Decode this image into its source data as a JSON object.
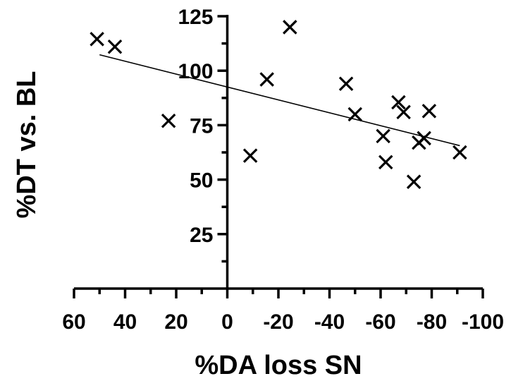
{
  "chart_data": {
    "type": "scatter",
    "xlabel": "%DA loss SN",
    "ylabel": "%DT vs. BL",
    "xlim": [
      60,
      -100
    ],
    "ylim": [
      0,
      125
    ],
    "x_ticks": [
      60,
      40,
      20,
      0,
      -20,
      -40,
      -60,
      -80,
      -100
    ],
    "x_tick_labels": [
      "60",
      "40",
      "20",
      "0",
      "-20",
      "-40",
      "-60",
      "-80",
      "-100"
    ],
    "y_ticks": [
      25,
      50,
      75,
      100,
      125
    ],
    "y_tick_labels": [
      "25",
      "50",
      "75",
      "100",
      "125"
    ],
    "grid": false,
    "marker": "x",
    "points": [
      {
        "x": 51,
        "y": 114.5
      },
      {
        "x": 44,
        "y": 111
      },
      {
        "x": 23,
        "y": 77
      },
      {
        "x": -9,
        "y": 61
      },
      {
        "x": -15.5,
        "y": 96
      },
      {
        "x": -24.5,
        "y": 120
      },
      {
        "x": -46.5,
        "y": 94
      },
      {
        "x": -50,
        "y": 80
      },
      {
        "x": -61,
        "y": 70
      },
      {
        "x": -62,
        "y": 58
      },
      {
        "x": -67,
        "y": 85.5
      },
      {
        "x": -69,
        "y": 81
      },
      {
        "x": -73,
        "y": 49
      },
      {
        "x": -75,
        "y": 67
      },
      {
        "x": -77,
        "y": 69
      },
      {
        "x": -79,
        "y": 81.5
      },
      {
        "x": -91,
        "y": 62.5
      }
    ],
    "fit_line": {
      "x": [
        50,
        -91
      ],
      "y": [
        107.3,
        65.6
      ]
    }
  }
}
